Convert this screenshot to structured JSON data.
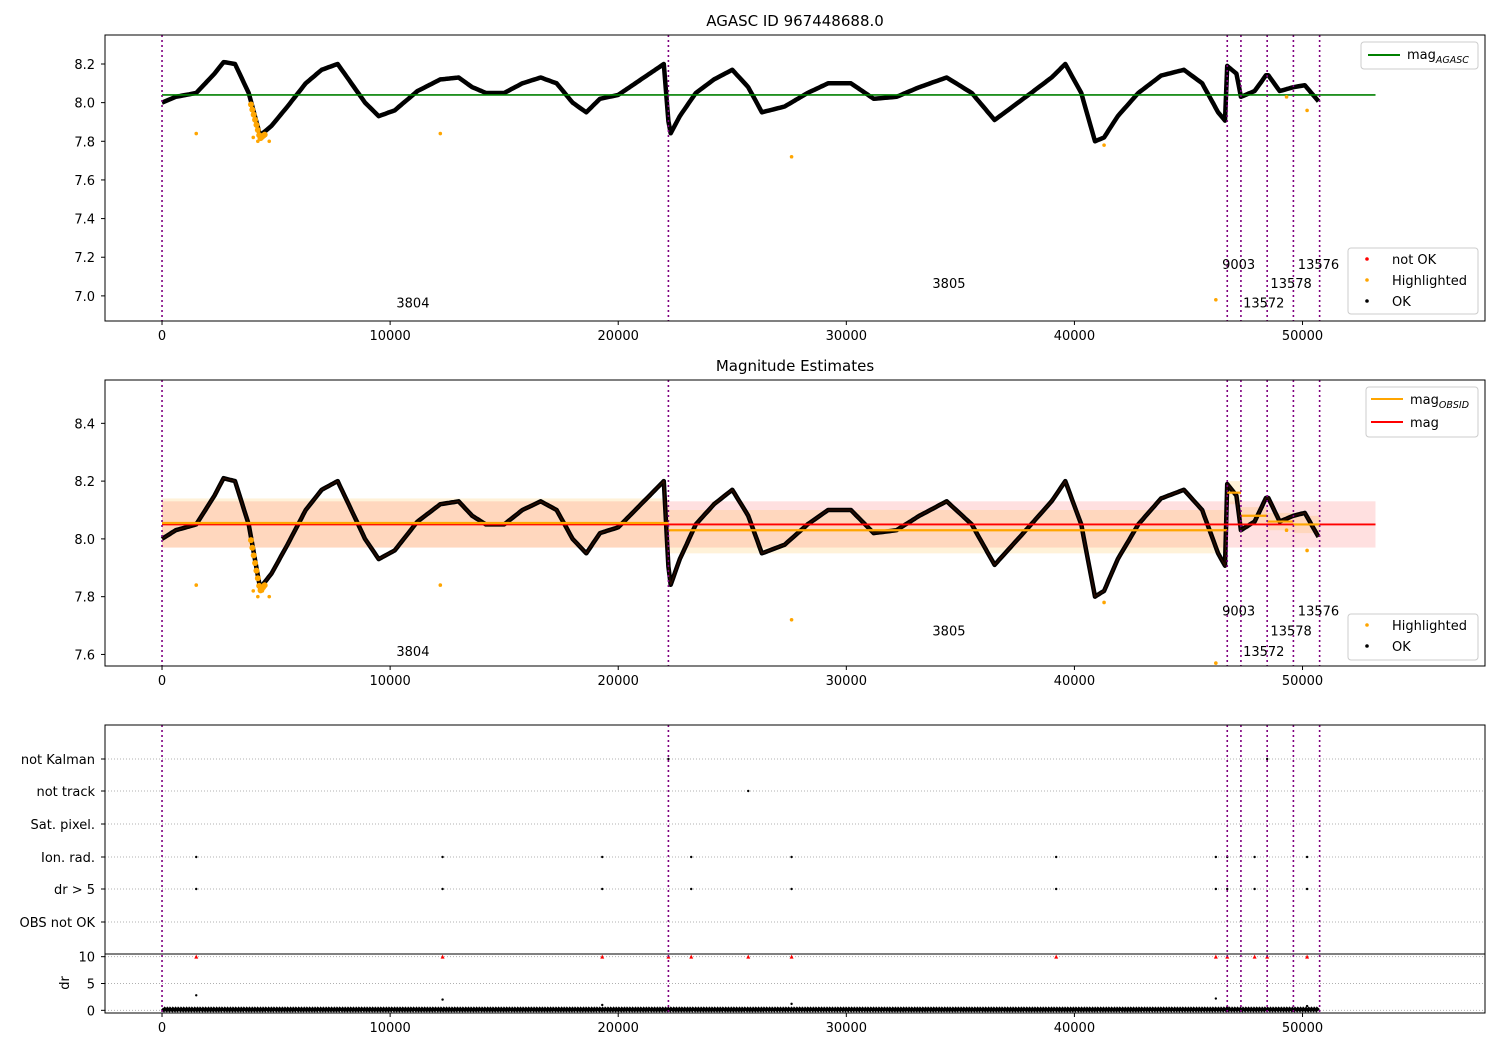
{
  "chart_data": [
    {
      "type": "scatter",
      "title": "AGASC ID 967448688.0",
      "xlim": [
        -2500,
        58000
      ],
      "ylim": [
        6.87,
        8.35
      ],
      "x_ticks": [
        0,
        10000,
        20000,
        30000,
        40000,
        50000
      ],
      "y_ticks": [
        7.0,
        7.2,
        7.4,
        7.6,
        7.8,
        8.0,
        8.2
      ],
      "mag_agasc": 8.04,
      "mag_agasc_xrange": [
        0,
        53200
      ],
      "obs_boundaries": [
        0,
        22200,
        46700,
        47300,
        48450,
        49600,
        50750
      ],
      "obs_labels": [
        {
          "text": "3804",
          "x": 11000,
          "y": 6.94
        },
        {
          "text": "3805",
          "x": 34500,
          "y": 7.04
        },
        {
          "text": "9003",
          "x": 47200,
          "y": 7.14
        },
        {
          "text": "13572",
          "x": 48300,
          "y": 6.94
        },
        {
          "text": "13578",
          "x": 49500,
          "y": 7.04
        },
        {
          "text": "13576",
          "x": 50700,
          "y": 7.14
        }
      ],
      "series_ok": {
        "name": "OK",
        "color": "#000000",
        "x": [
          0,
          600,
          1500,
          2300,
          2700,
          3200,
          3800,
          4300,
          4800,
          5500,
          6300,
          7000,
          7700,
          8300,
          8900,
          9500,
          10200,
          11200,
          12200,
          13000,
          13600,
          14200,
          15000,
          15800,
          16600,
          17300,
          18000,
          18600,
          19200,
          20000,
          21000,
          22000,
          22250,
          22700,
          23400,
          24200,
          25000,
          25700,
          26300,
          27300,
          28300,
          29200,
          30200,
          31200,
          32200,
          33200,
          34400,
          35500,
          36500,
          37300,
          38100,
          39000,
          39600,
          40300,
          40900,
          41300,
          41900,
          42800,
          43800,
          44800,
          45600,
          46300,
          46650,
          46700,
          47100,
          47300,
          47900,
          48450,
          49000,
          49600,
          50100,
          50750
        ],
        "y": [
          8.0,
          8.03,
          8.05,
          8.15,
          8.21,
          8.2,
          8.05,
          7.83,
          7.88,
          7.98,
          8.1,
          8.17,
          8.2,
          8.1,
          8.0,
          7.93,
          7.96,
          8.06,
          8.12,
          8.13,
          8.08,
          8.05,
          8.05,
          8.1,
          8.13,
          8.1,
          8.0,
          7.95,
          8.02,
          8.04,
          8.12,
          8.2,
          7.83,
          7.93,
          8.05,
          8.12,
          8.17,
          8.08,
          7.95,
          7.98,
          8.05,
          8.1,
          8.1,
          8.02,
          8.03,
          8.08,
          8.13,
          8.05,
          7.91,
          7.98,
          8.05,
          8.13,
          8.2,
          8.05,
          7.8,
          7.82,
          7.93,
          8.05,
          8.14,
          8.17,
          8.1,
          7.95,
          7.9,
          8.19,
          8.15,
          8.03,
          8.06,
          8.15,
          8.06,
          8.08,
          8.09,
          8.0
        ]
      },
      "series_highlighted": {
        "name": "Highlighted",
        "color": "#ffa500",
        "x": [
          1500,
          4000,
          4200,
          4400,
          4700,
          12200,
          27600,
          41300,
          46200,
          49300,
          50200
        ],
        "y": [
          7.84,
          7.82,
          7.8,
          7.82,
          7.8,
          7.84,
          7.72,
          7.78,
          6.98,
          8.03,
          7.96
        ]
      },
      "legend_main": [
        {
          "label": "mag_AGASC",
          "main": "mag",
          "sub": "AGASC",
          "color": "#008000"
        }
      ],
      "legend_points": [
        {
          "label": "not OK",
          "color": "#ff0000"
        },
        {
          "label": "Highlighted",
          "color": "#ffa500"
        },
        {
          "label": "OK",
          "color": "#000000"
        }
      ]
    },
    {
      "type": "scatter",
      "title": "Magnitude Estimates",
      "xlim": [
        -2500,
        58000
      ],
      "ylim": [
        7.56,
        8.55
      ],
      "x_ticks": [
        0,
        10000,
        20000,
        30000,
        40000,
        50000
      ],
      "y_ticks": [
        7.6,
        7.8,
        8.0,
        8.2,
        8.4
      ],
      "mag": 8.05,
      "mag_band": [
        7.97,
        8.13
      ],
      "mag_xrange": [
        0,
        53200
      ],
      "mag_obsid": [
        {
          "x0": 0,
          "x1": 22200,
          "value": 8.055,
          "band": [
            7.97,
            8.14
          ]
        },
        {
          "x0": 22200,
          "x1": 46700,
          "value": 8.03,
          "band": [
            7.95,
            8.1
          ]
        },
        {
          "x0": 46700,
          "x1": 47300,
          "value": 8.16,
          "band": [
            8.12,
            8.2
          ]
        },
        {
          "x0": 47300,
          "x1": 48450,
          "value": 8.08,
          "band": [
            8.05,
            8.11
          ]
        },
        {
          "x0": 48450,
          "x1": 49600,
          "value": 8.06,
          "band": [
            8.03,
            8.09
          ]
        },
        {
          "x0": 49600,
          "x1": 50750,
          "value": 8.05,
          "band": [
            8.02,
            8.08
          ]
        }
      ],
      "obs_boundaries": [
        0,
        22200,
        46700,
        47300,
        48450,
        49600,
        50750
      ],
      "obs_labels": [
        {
          "text": "3804",
          "x": 11000,
          "y": 7.595
        },
        {
          "text": "3805",
          "x": 34500,
          "y": 7.665
        },
        {
          "text": "9003",
          "x": 47200,
          "y": 7.735
        },
        {
          "text": "13572",
          "x": 48300,
          "y": 7.595
        },
        {
          "text": "13578",
          "x": 49500,
          "y": 7.665
        },
        {
          "text": "13576",
          "x": 50700,
          "y": 7.735
        }
      ],
      "series_highlighted": {
        "name": "Highlighted",
        "color": "#ffa500",
        "x": [
          1500,
          4000,
          4200,
          4400,
          4700,
          12200,
          27600,
          41300,
          46200,
          49300,
          50200
        ],
        "y": [
          7.84,
          7.82,
          7.8,
          7.82,
          7.8,
          7.84,
          7.72,
          7.78,
          7.57,
          8.03,
          7.96
        ]
      },
      "legend_main": [
        {
          "label": "mag_OBSID",
          "main": "mag",
          "sub": "OBSID",
          "color": "#ffa500"
        },
        {
          "label": "mag",
          "main": "mag",
          "sub": "",
          "color": "#ff0000"
        }
      ],
      "legend_points": [
        {
          "label": "Highlighted",
          "color": "#ffa500"
        },
        {
          "label": "OK",
          "color": "#000000"
        }
      ]
    },
    {
      "type": "scatter",
      "title": "",
      "xlim": [
        -2500,
        58000
      ],
      "flag_labels": [
        "not Kalman",
        "not track",
        "Sat. pixel.",
        "Ion. rad.",
        "dr > 5",
        "OBS not OK"
      ],
      "flag_points": [
        {
          "flag": "not Kalman",
          "x": [
            22200,
            48450
          ]
        },
        {
          "flag": "not track",
          "x": [
            25700
          ]
        },
        {
          "flag": "Sat. pixel.",
          "x": []
        },
        {
          "flag": "Ion. rad.",
          "x": [
            1500,
            12300,
            19300,
            23200,
            27600,
            39200,
            46200,
            46700,
            47900,
            50200
          ]
        },
        {
          "flag": "dr > 5",
          "x": [
            1500,
            12300,
            19300,
            23200,
            27600,
            39200,
            46200,
            46700,
            47900,
            50200
          ]
        },
        {
          "flag": "OBS not OK",
          "x": []
        }
      ],
      "dr_ylabel": "dr",
      "dr_ylim": [
        -0.5,
        10.5
      ],
      "dr_ticks": [
        0,
        5,
        10
      ],
      "dr_x_ticks": [
        0,
        10000,
        20000,
        30000,
        40000,
        50000
      ],
      "dr_clipped_x": [
        1500,
        12300,
        19300,
        22200,
        23200,
        25700,
        27600,
        39200,
        46200,
        46700,
        47900,
        48450,
        50200
      ],
      "dr_points": {
        "x": [
          1500,
          12300,
          19300,
          27600,
          46200,
          46700,
          50200
        ],
        "y": [
          2.8,
          2.0,
          1.0,
          1.2,
          2.2,
          0.6,
          0.8
        ]
      },
      "obs_boundaries": [
        0,
        22200,
        46700,
        47300,
        48450,
        49600,
        50750
      ]
    }
  ]
}
